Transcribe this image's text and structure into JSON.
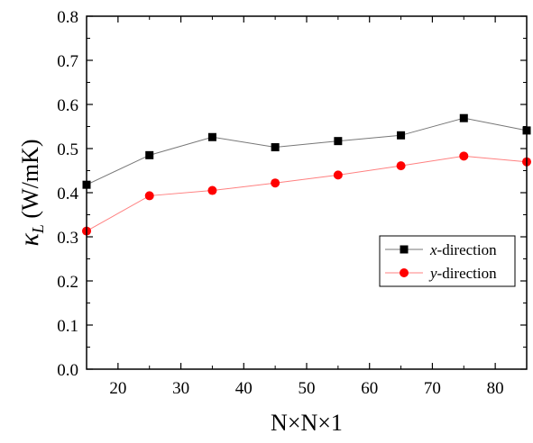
{
  "chart_data": {
    "type": "line",
    "xlabel": "N×N×1",
    "ylabel": {
      "symbol": "κ",
      "subscript": "L",
      "unit": " (W/mK)"
    },
    "xlim": [
      15,
      85
    ],
    "ylim": [
      0.0,
      0.8
    ],
    "x_ticks": [
      20,
      30,
      40,
      50,
      60,
      70,
      80
    ],
    "y_ticks": [
      0.0,
      0.1,
      0.2,
      0.3,
      0.4,
      0.5,
      0.6,
      0.7,
      0.8
    ],
    "y_tick_labels": [
      "0.0",
      "0.1",
      "0.2",
      "0.3",
      "0.4",
      "0.5",
      "0.6",
      "0.7",
      "0.8"
    ],
    "grid": false,
    "legend_position": "center-right",
    "x": [
      15,
      25,
      35,
      45,
      55,
      65,
      75,
      85
    ],
    "series": [
      {
        "name_italic": "x",
        "name_rest": "-direction",
        "values": [
          0.418,
          0.485,
          0.526,
          0.503,
          0.517,
          0.53,
          0.569,
          0.541
        ],
        "marker": "square",
        "color": "#000000",
        "line_color": "#777777"
      },
      {
        "name_italic": "y",
        "name_rest": "-direction",
        "values": [
          0.313,
          0.393,
          0.405,
          0.422,
          0.44,
          0.461,
          0.483,
          0.47
        ],
        "marker": "circle",
        "color": "#ff0000",
        "line_color": "#ff8080"
      }
    ]
  }
}
